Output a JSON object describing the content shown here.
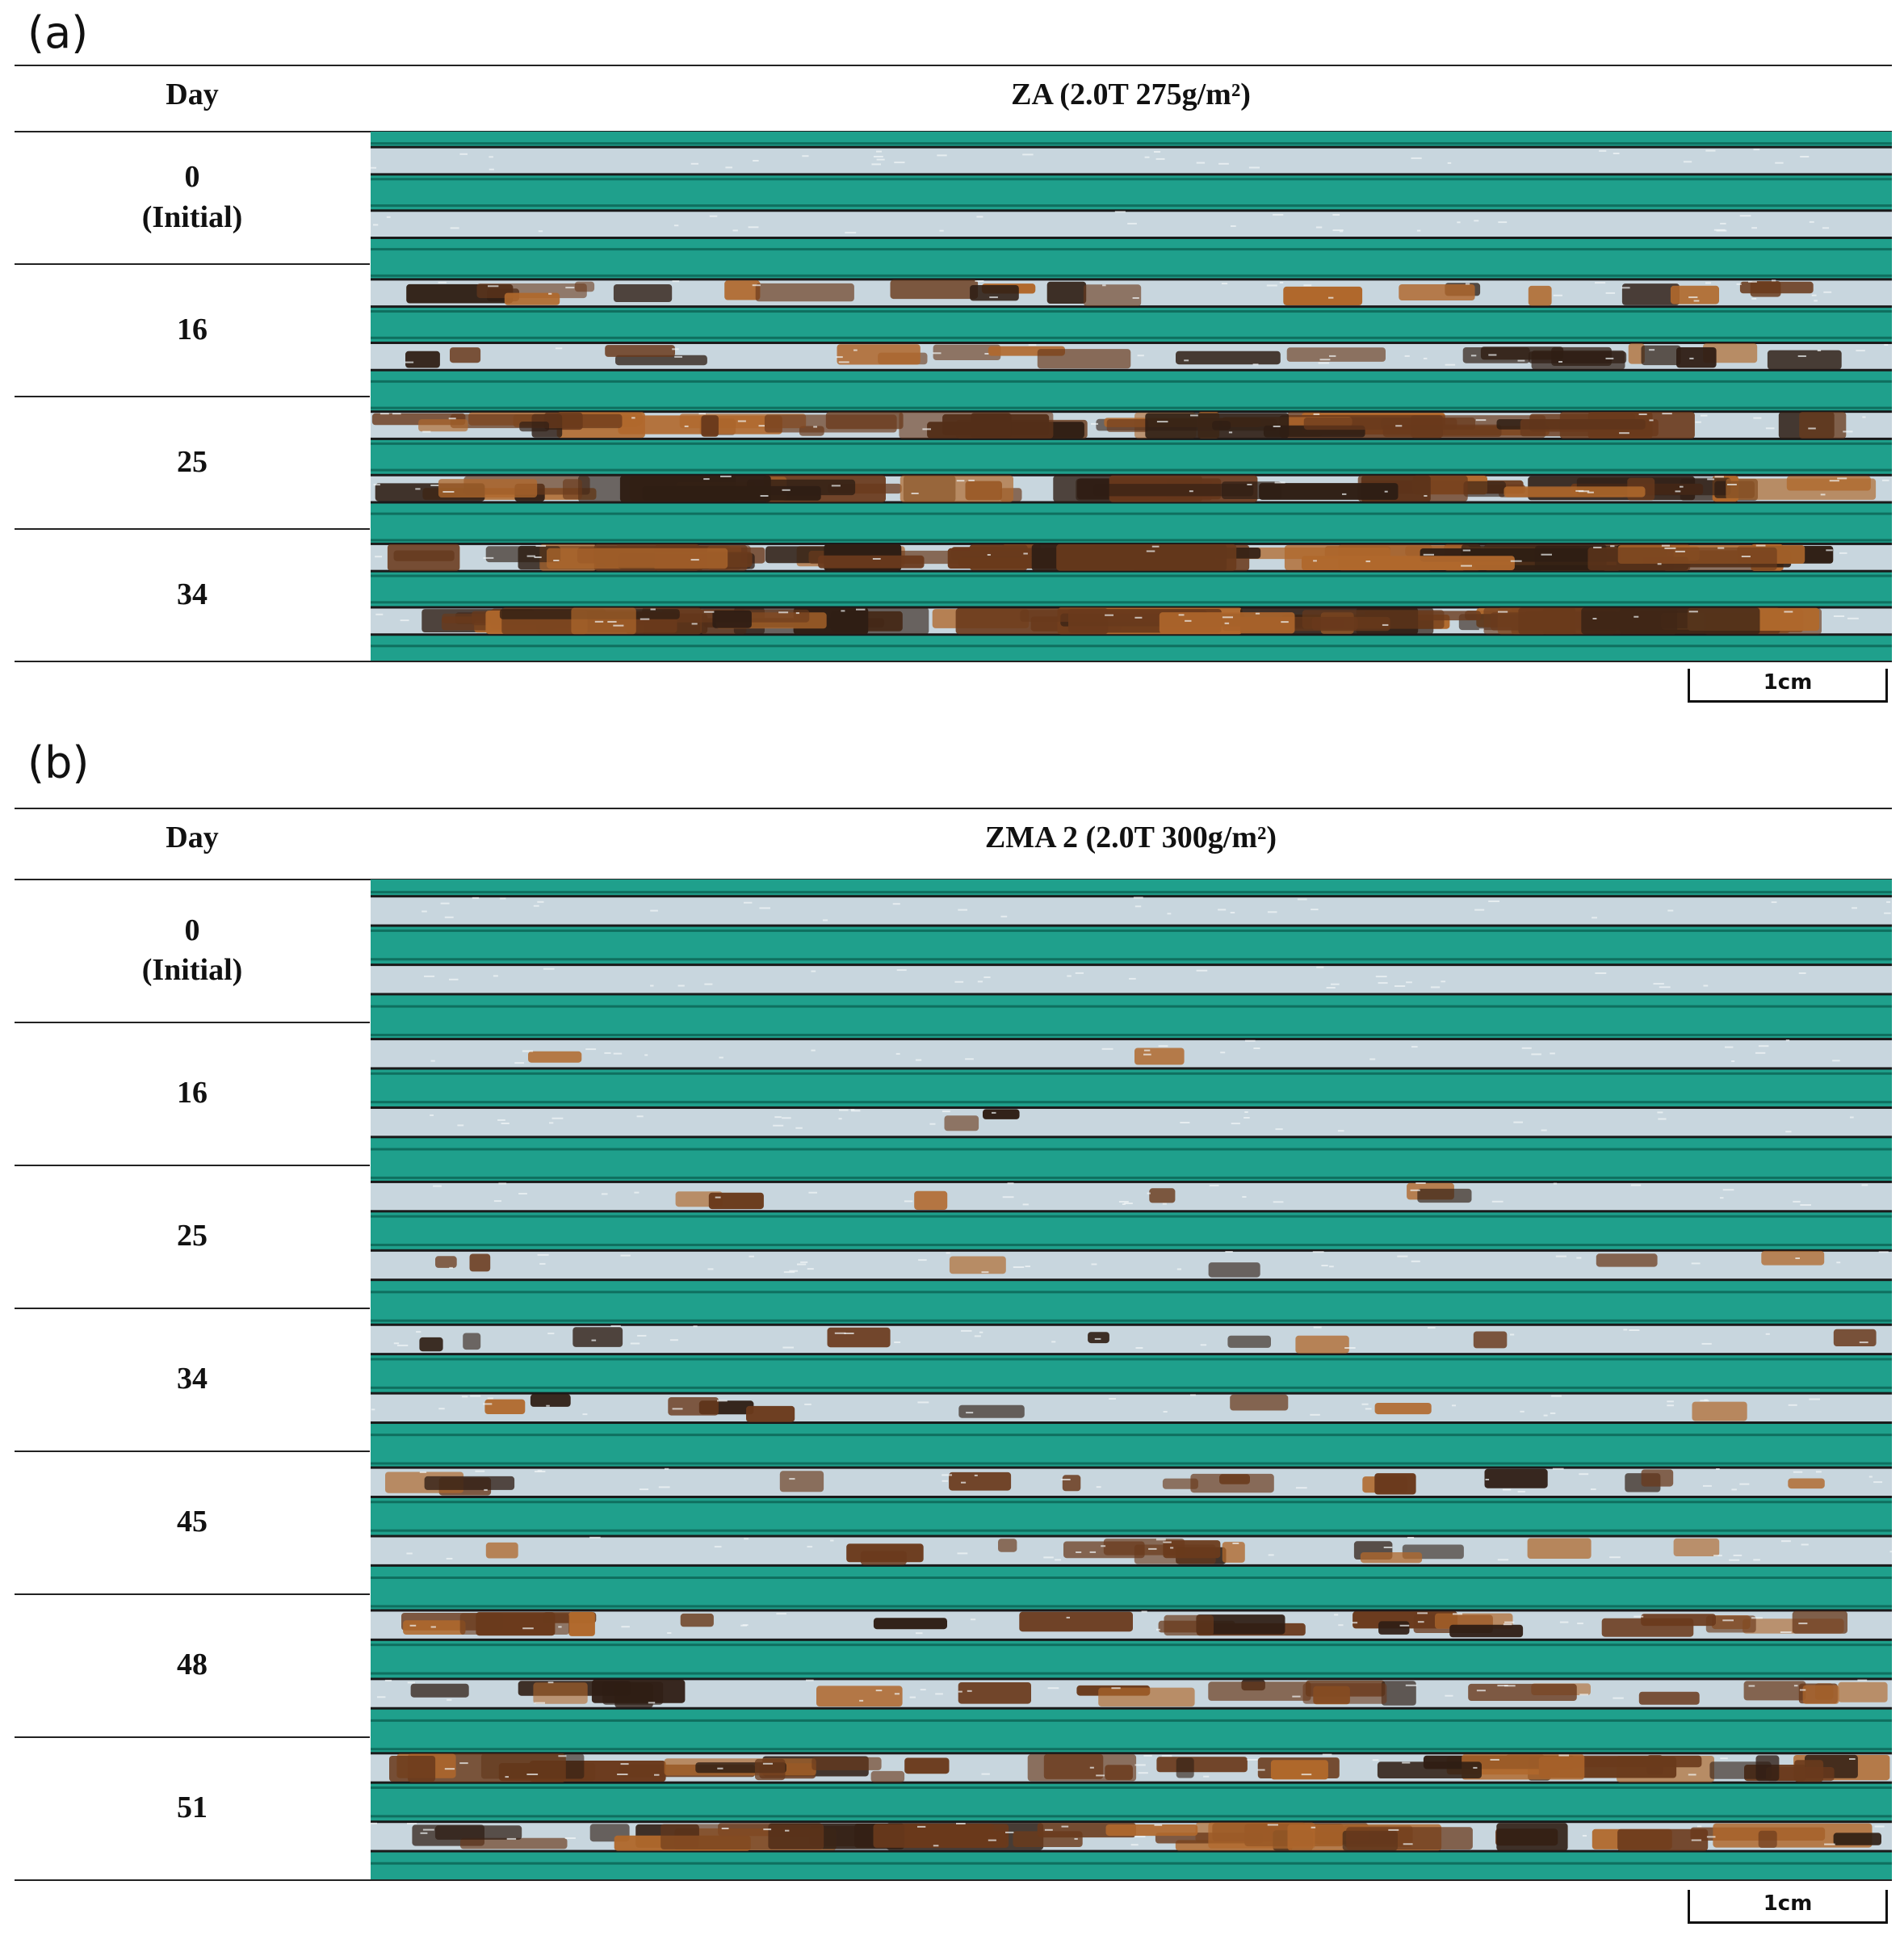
{
  "panels": [
    {
      "label": "(a)",
      "header": {
        "day": "Day",
        "title": "ZA (2.0T 275g/m²)"
      },
      "rows": [
        {
          "day": "0",
          "sub": "(Initial)",
          "corrosion": 0.0
        },
        {
          "day": "16",
          "sub": "",
          "corrosion": 0.35
        },
        {
          "day": "25",
          "sub": "",
          "corrosion": 0.75
        },
        {
          "day": "34",
          "sub": "",
          "corrosion": 0.95
        }
      ],
      "scale": "1cm"
    },
    {
      "label": "(b)",
      "header": {
        "day": "Day",
        "title": "ZMA 2 (2.0T 300g/m²)"
      },
      "rows": [
        {
          "day": "0",
          "sub": "(Initial)",
          "corrosion": 0.0
        },
        {
          "day": "16",
          "sub": "",
          "corrosion": 0.03
        },
        {
          "day": "25",
          "sub": "",
          "corrosion": 0.1
        },
        {
          "day": "34",
          "sub": "",
          "corrosion": 0.15
        },
        {
          "day": "45",
          "sub": "",
          "corrosion": 0.25
        },
        {
          "day": "48",
          "sub": "",
          "corrosion": 0.4
        },
        {
          "day": "51",
          "sub": "",
          "corrosion": 0.65
        }
      ],
      "scale": "1cm"
    }
  ],
  "colors": {
    "resin_green": "#1fa08c",
    "resin_dark": "#0f6f5f",
    "coating_silver": "#c8d6de",
    "rust_brown": "#6a3a1c",
    "rust_dark": "#2f1e14",
    "rust_orange": "#b0682c"
  }
}
